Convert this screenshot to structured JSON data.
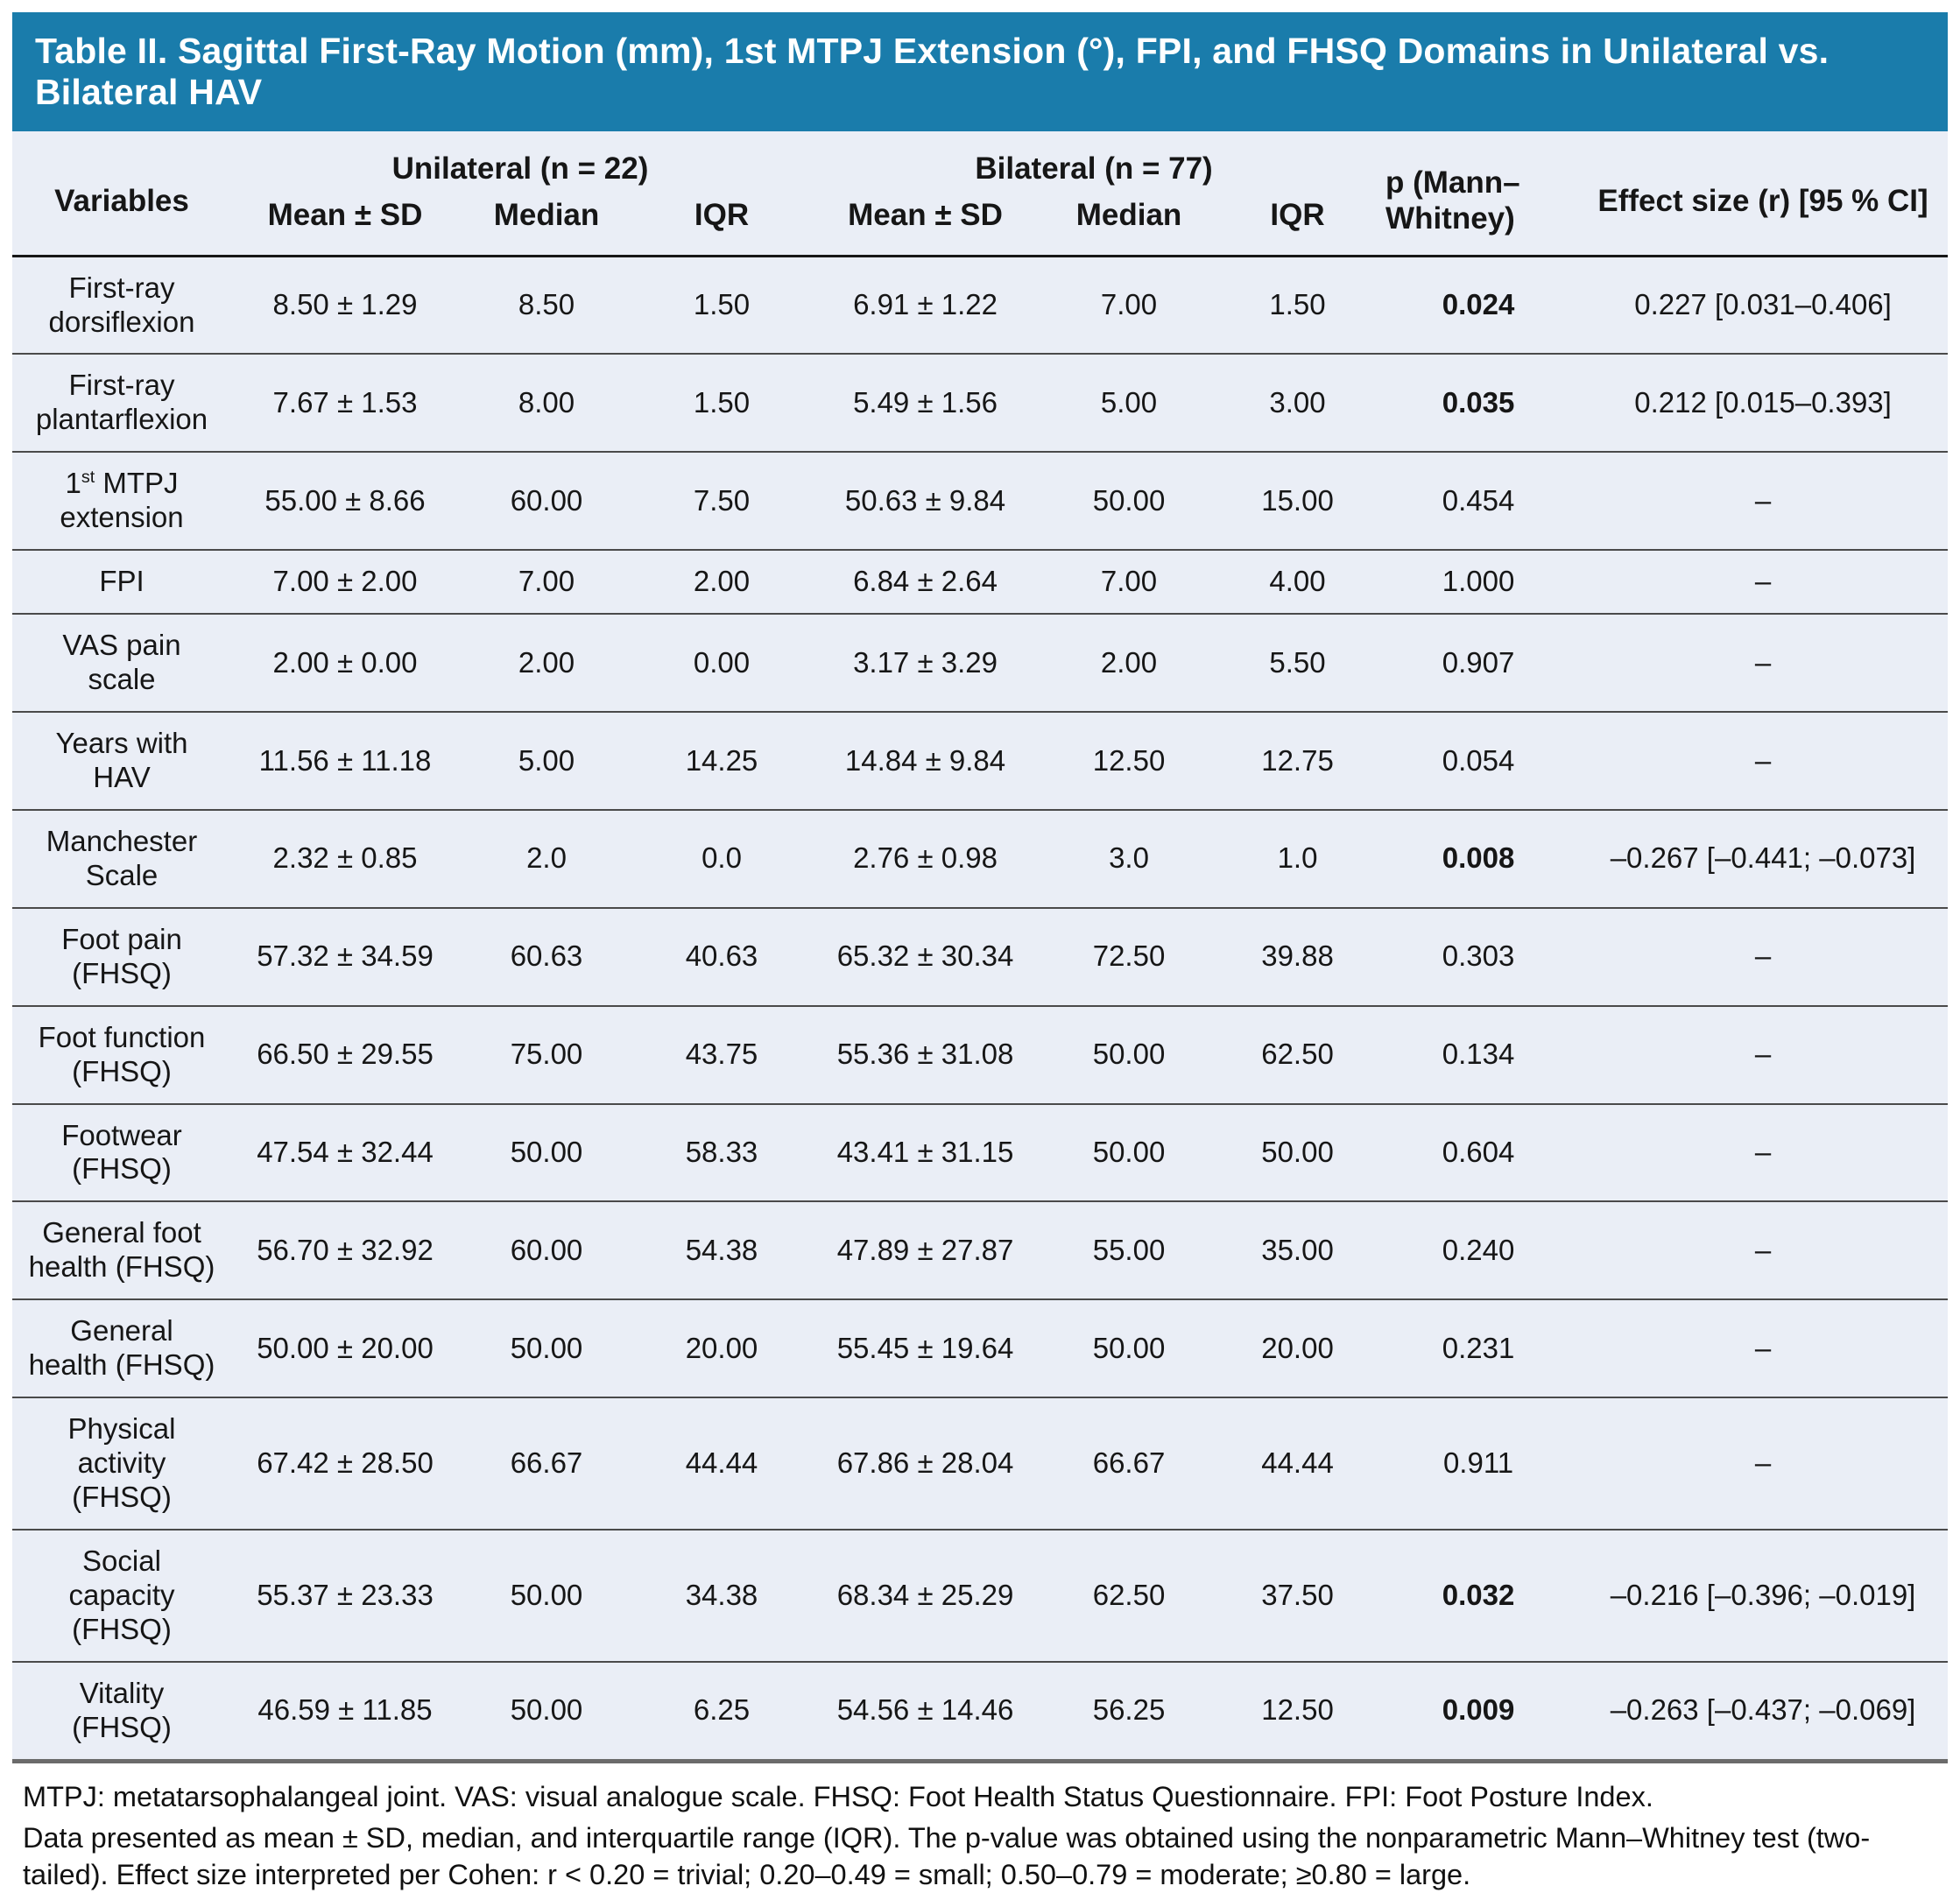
{
  "title": "Table II. Sagittal First-Ray Motion (mm), 1st MTPJ Extension (°), FPI, and FHSQ Domains in Unilateral vs. Bilateral HAV",
  "colors": {
    "title_bar_blue": "#1a7cab",
    "table_background": "#eaeef6",
    "row_rule": "#4a4a4a",
    "title_text": "#ffffff"
  },
  "header": {
    "variables": "Variables",
    "group_unilateral": "Unilateral (n = 22)",
    "group_bilateral": "Bilateral (n = 77)",
    "p_label": "p (Mann–Whitney)",
    "effect_label": "Effect size (r) [95 % CI]",
    "sub": [
      "Mean ± SD",
      "Median",
      "IQR",
      "Mean ± SD",
      "Median",
      "IQR"
    ]
  },
  "rows": [
    {
      "variable": "First-ray dorsiflexion",
      "uni": [
        "8.50 ± 1.29",
        "8.50",
        "1.50"
      ],
      "bil": [
        "6.91 ± 1.22",
        "7.00",
        "1.50"
      ],
      "p": "0.024",
      "p_bold": true,
      "effect": "0.227 [0.031–0.406]"
    },
    {
      "variable": "First-ray plantarflexion",
      "uni": [
        "7.67 ± 1.53",
        "8.00",
        "1.50"
      ],
      "bil": [
        "5.49 ± 1.56",
        "5.00",
        "3.00"
      ],
      "p": "0.035",
      "p_bold": true,
      "effect": "0.212 [0.015–0.393]"
    },
    {
      "variable": "1st MTPJ extension",
      "sup": true,
      "uni": [
        "55.00 ± 8.66",
        "60.00",
        "7.50"
      ],
      "bil": [
        "50.63 ± 9.84",
        "50.00",
        "15.00"
      ],
      "p": "0.454",
      "p_bold": false,
      "effect": "–"
    },
    {
      "variable": "FPI",
      "uni": [
        "7.00 ± 2.00",
        "7.00",
        "2.00"
      ],
      "bil": [
        "6.84 ± 2.64",
        "7.00",
        "4.00"
      ],
      "p": "1.000",
      "p_bold": false,
      "effect": "–"
    },
    {
      "variable": "VAS pain scale",
      "uni": [
        "2.00 ± 0.00",
        "2.00",
        "0.00"
      ],
      "bil": [
        "3.17 ± 3.29",
        "2.00",
        "5.50"
      ],
      "p": "0.907",
      "p_bold": false,
      "effect": "–"
    },
    {
      "variable": "Years with HAV",
      "uni": [
        "11.56 ± 11.18",
        "5.00",
        "14.25"
      ],
      "bil": [
        "14.84 ± 9.84",
        "12.50",
        "12.75"
      ],
      "p": "0.054",
      "p_bold": false,
      "effect": "–"
    },
    {
      "variable": "Manchester Scale",
      "uni": [
        "2.32 ± 0.85",
        "2.0",
        "0.0"
      ],
      "bil": [
        "2.76 ± 0.98",
        "3.0",
        "1.0"
      ],
      "p": "0.008",
      "p_bold": true,
      "effect": "–0.267 [–0.441; –0.073]"
    },
    {
      "variable": "Foot pain (FHSQ)",
      "uni": [
        "57.32 ± 34.59",
        "60.63",
        "40.63"
      ],
      "bil": [
        "65.32 ± 30.34",
        "72.50",
        "39.88"
      ],
      "p": "0.303",
      "p_bold": false,
      "effect": "–"
    },
    {
      "variable": "Foot function (FHSQ)",
      "uni": [
        "66.50 ± 29.55",
        "75.00",
        "43.75"
      ],
      "bil": [
        "55.36 ± 31.08",
        "50.00",
        "62.50"
      ],
      "p": "0.134",
      "p_bold": false,
      "effect": "–"
    },
    {
      "variable": "Footwear (FHSQ)",
      "uni": [
        "47.54 ± 32.44",
        "50.00",
        "58.33"
      ],
      "bil": [
        "43.41 ± 31.15",
        "50.00",
        "50.00"
      ],
      "p": "0.604",
      "p_bold": false,
      "effect": "–"
    },
    {
      "variable": "General foot health (FHSQ)",
      "uni": [
        "56.70 ± 32.92",
        "60.00",
        "54.38"
      ],
      "bil": [
        "47.89 ± 27.87",
        "55.00",
        "35.00"
      ],
      "p": "0.240",
      "p_bold": false,
      "effect": "–"
    },
    {
      "variable": "General health (FHSQ)",
      "uni": [
        "50.00 ± 20.00",
        "50.00",
        "20.00"
      ],
      "bil": [
        "55.45 ± 19.64",
        "50.00",
        "20.00"
      ],
      "p": "0.231",
      "p_bold": false,
      "effect": "–"
    },
    {
      "variable": "Physical activity (FHSQ)",
      "uni": [
        "67.42 ± 28.50",
        "66.67",
        "44.44"
      ],
      "bil": [
        "67.86 ± 28.04",
        "66.67",
        "44.44"
      ],
      "p": "0.911",
      "p_bold": false,
      "effect": "–"
    },
    {
      "variable": "Social capacity (FHSQ)",
      "uni": [
        "55.37 ± 23.33",
        "50.00",
        "34.38"
      ],
      "bil": [
        "68.34 ± 25.29",
        "62.50",
        "37.50"
      ],
      "p": "0.032",
      "p_bold": true,
      "effect": "–0.216 [–0.396; –0.019]"
    },
    {
      "variable": "Vitality (FHSQ)",
      "uni": [
        "46.59 ± 11.85",
        "50.00",
        "6.25"
      ],
      "bil": [
        "54.56 ± 14.46",
        "56.25",
        "12.50"
      ],
      "p": "0.009",
      "p_bold": true,
      "effect": "–0.263 [–0.437; –0.069]"
    }
  ],
  "footnotes": [
    "MTPJ: metatarsophalangeal joint. VAS: visual analogue scale. FHSQ: Foot Health Status Questionnaire. FPI: Foot Posture Index.",
    "Data presented as mean ± SD, median, and interquartile range (IQR). The p-value was obtained using the nonparametric Mann–Whitney test (two-tailed). Effect size interpreted per Cohen: r < 0.20 = trivial; 0.20–0.49 = small; 0.50–0.79 = moderate; ≥0.80 = large."
  ]
}
